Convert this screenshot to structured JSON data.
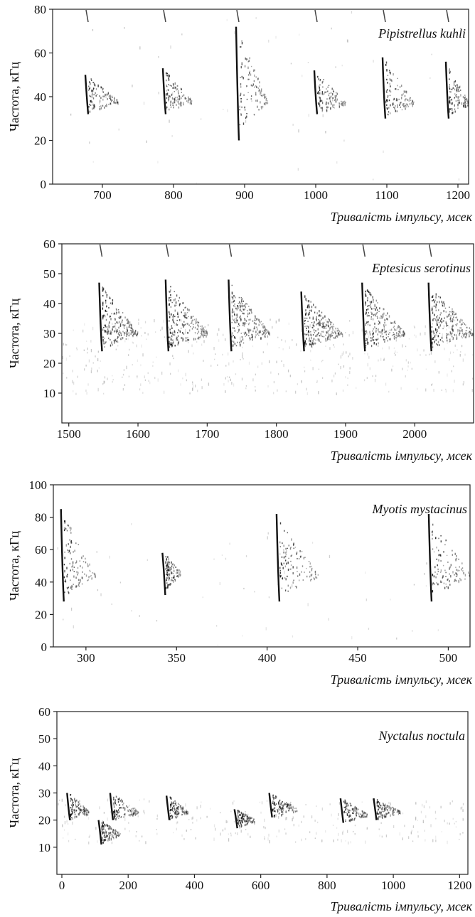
{
  "chart_data": [
    {
      "type": "spectrogram",
      "species": "Pipistrellus kuhli",
      "xlabel": "Тривалість імпульсу, мсек",
      "ylabel": "Частота, кГц",
      "xlim": [
        630,
        1215
      ],
      "ylim": [
        0,
        80
      ],
      "xticks": [
        700,
        800,
        900,
        1000,
        1100,
        1200
      ],
      "yticks": [
        0,
        20,
        40,
        60,
        80
      ],
      "calls": [
        {
          "t": 678,
          "f_top": 50,
          "f_bottom": 32,
          "f_peak": 38,
          "tail_end": 722
        },
        {
          "t": 787,
          "f_top": 53,
          "f_bottom": 32,
          "f_peak": 38,
          "tail_end": 826
        },
        {
          "t": 890,
          "f_top": 72,
          "f_bottom": 20,
          "f_peak": 38,
          "tail_end": 932
        },
        {
          "t": 1000,
          "f_top": 52,
          "f_bottom": 32,
          "f_peak": 37,
          "tail_end": 1042
        },
        {
          "t": 1096,
          "f_top": 58,
          "f_bottom": 30,
          "f_peak": 37,
          "tail_end": 1138
        },
        {
          "t": 1185,
          "f_top": 56,
          "f_bottom": 30,
          "f_peak": 37,
          "tail_end": 1215
        }
      ]
    },
    {
      "type": "spectrogram",
      "species": "Eptesicus serotinus",
      "xlabel": "Тривалість імпульсу, мсек",
      "ylabel": "Частота, кГц",
      "xlim": [
        1490,
        2085
      ],
      "ylim": [
        0,
        60
      ],
      "xticks": [
        1500,
        1600,
        1700,
        1800,
        1900,
        2000
      ],
      "yticks": [
        10,
        20,
        30,
        40,
        50,
        60
      ],
      "calls": [
        {
          "t": 1546,
          "f_top": 47,
          "f_bottom": 24,
          "f_peak": 30,
          "tail_end": 1600
        },
        {
          "t": 1642,
          "f_top": 48,
          "f_bottom": 24,
          "f_peak": 30,
          "tail_end": 1700
        },
        {
          "t": 1733,
          "f_top": 48,
          "f_bottom": 24,
          "f_peak": 30,
          "tail_end": 1790
        },
        {
          "t": 1838,
          "f_top": 44,
          "f_bottom": 24,
          "f_peak": 30,
          "tail_end": 1895
        },
        {
          "t": 1926,
          "f_top": 47,
          "f_bottom": 24,
          "f_peak": 30,
          "tail_end": 1985
        },
        {
          "t": 2022,
          "f_top": 47,
          "f_bottom": 24,
          "f_peak": 30,
          "tail_end": 2085
        }
      ]
    },
    {
      "type": "spectrogram",
      "species": "Myotis mystacinus",
      "xlabel": "Тривалість імпульсу, мсек",
      "ylabel": "Частота, кГц",
      "xlim": [
        282,
        512
      ],
      "ylim": [
        0,
        100
      ],
      "xticks": [
        300,
        350,
        400,
        450,
        500
      ],
      "yticks": [
        0,
        20,
        40,
        60,
        80,
        100
      ],
      "calls": [
        {
          "t": 287,
          "f_top": 85,
          "f_bottom": 28,
          "f_peak": 44,
          "tail_end": 305
        },
        {
          "t": 343,
          "f_top": 58,
          "f_bottom": 32,
          "f_peak": 46,
          "tail_end": 352
        },
        {
          "t": 406,
          "f_top": 82,
          "f_bottom": 28,
          "f_peak": 44,
          "tail_end": 428
        },
        {
          "t": 490,
          "f_top": 82,
          "f_bottom": 28,
          "f_peak": 44,
          "tail_end": 512
        }
      ]
    },
    {
      "type": "spectrogram",
      "species": "Nyctalus noctula",
      "xlabel": "Тривалість імпульсу, мсек",
      "ylabel": "Частота, кГц",
      "xlim": [
        -15,
        1225
      ],
      "ylim": [
        0,
        60
      ],
      "xticks": [
        0,
        200,
        400,
        600,
        800,
        1000,
        1200
      ],
      "yticks": [
        10,
        20,
        30,
        40,
        50,
        60
      ],
      "calls": [
        {
          "t": 20,
          "f_top": 30,
          "f_bottom": 20,
          "f_peak": 23,
          "tail_end": 80
        },
        {
          "t": 115,
          "f_top": 20,
          "f_bottom": 11,
          "f_peak": 15,
          "tail_end": 175
        },
        {
          "t": 150,
          "f_top": 30,
          "f_bottom": 20,
          "f_peak": 23,
          "tail_end": 230
        },
        {
          "t": 320,
          "f_top": 29,
          "f_bottom": 20,
          "f_peak": 23,
          "tail_end": 380
        },
        {
          "t": 525,
          "f_top": 24,
          "f_bottom": 17,
          "f_peak": 20,
          "tail_end": 580
        },
        {
          "t": 630,
          "f_top": 30,
          "f_bottom": 21,
          "f_peak": 24,
          "tail_end": 710
        },
        {
          "t": 845,
          "f_top": 28,
          "f_bottom": 19,
          "f_peak": 22,
          "tail_end": 920
        },
        {
          "t": 945,
          "f_top": 28,
          "f_bottom": 20,
          "f_peak": 23,
          "tail_end": 1020
        }
      ]
    }
  ]
}
